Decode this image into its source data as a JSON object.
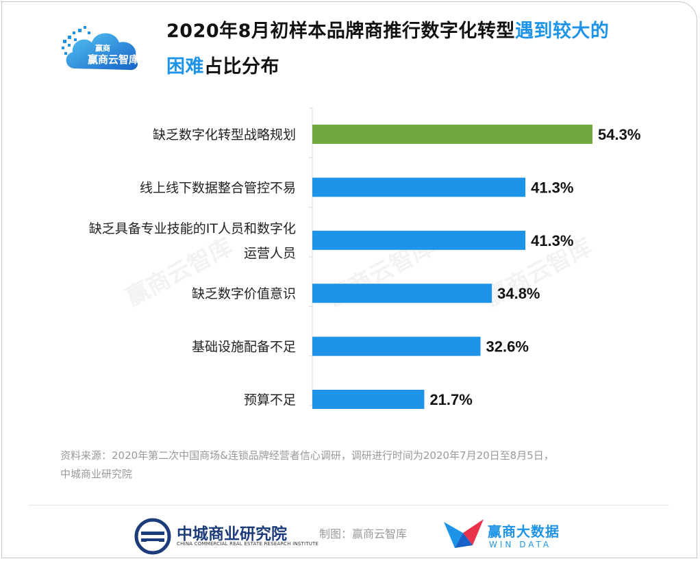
{
  "brand": {
    "logo_text": "赢商云智库",
    "watermark": "赢商云智库"
  },
  "title": {
    "part1": "2020年8月初样本品牌商推行数字化转型",
    "part2_highlight": "遇到较大的",
    "part3_highlight": "困难",
    "part4": "占比分布",
    "highlight_color": "#1e94e8"
  },
  "chart_data": {
    "type": "bar",
    "orientation": "horizontal",
    "title": "2020年8月初样本品牌商推行数字化转型遇到较大的困难占比分布",
    "categories": [
      [
        "缺乏数字化转型战略规划"
      ],
      [
        "线上线下数据整合管控不易"
      ],
      [
        "缺乏具备专业技能的IT人员和数字化",
        "运营人员"
      ],
      [
        "缺乏数字价值意识"
      ],
      [
        "基础设施配备不足"
      ],
      [
        "预算不足"
      ]
    ],
    "values": [
      54.3,
      41.3,
      41.3,
      34.8,
      32.6,
      21.7
    ],
    "value_labels": [
      "54.3%",
      "41.3%",
      "41.3%",
      "34.8%",
      "32.6%",
      "21.7%"
    ],
    "colors": [
      "#6fa940",
      "#1e94e8",
      "#1e94e8",
      "#1e94e8",
      "#1e94e8",
      "#1e94e8"
    ],
    "xlim": [
      0,
      54.3
    ],
    "unit": "%"
  },
  "source": {
    "line1": "资料来源：2020年第二次中国商场&连锁品牌经营者信心调研，调研进行时间为2020年7月20日至8月5日，",
    "line2": "中城商业研究院"
  },
  "footer": {
    "org_cn": "中城商业研究院",
    "org_en": "CHINA COMMERCIAL REAL ESTATE RESEARCH INSTITUTE",
    "credit": "制图：赢商云智库",
    "win_cn": "赢商大数据",
    "win_en": "WIN DATA"
  }
}
